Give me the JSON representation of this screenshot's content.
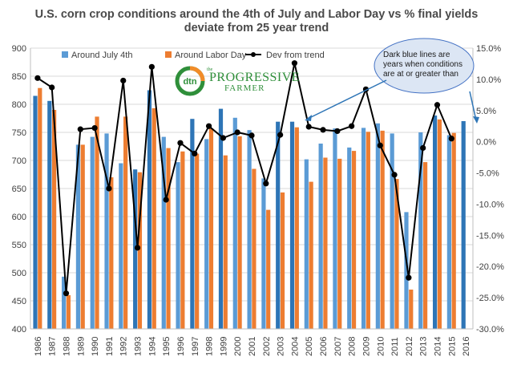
{
  "title_line1": "U.S. corn crop conditions around the 4th of July and Labor Day vs % final yields",
  "title_line2": "deviate from 25 year trend",
  "logo": {
    "mark": "dtn",
    "the": "the",
    "name": "PROGRESSIVE",
    "sub": "FARMER"
  },
  "callout": "Dark blue lines are years when conditions are at or greater than",
  "colors": {
    "july": "#5b9bd5",
    "july_dark": "#2e75b6",
    "labor": "#ed7d31",
    "dev_line": "#000000",
    "callout_fill": "#dce6f4",
    "callout_stroke": "#4472c4",
    "logo_green": "#2f8f3a",
    "logo_orange": "#f28c28"
  },
  "chart_data": {
    "type": "bar",
    "categories": [
      "1986",
      "1987",
      "1988",
      "1989",
      "1990",
      "1991",
      "1992",
      "1993",
      "1994",
      "1995",
      "1996",
      "1997",
      "1998",
      "1999",
      "2000",
      "2001",
      "2002",
      "2003",
      "2004",
      "2005",
      "2006",
      "2007",
      "2008",
      "2009",
      "2010",
      "2011",
      "2012",
      "2013",
      "2014",
      "2015",
      "2016"
    ],
    "series": [
      {
        "name": "Around July 4th",
        "axis": "left",
        "values": [
          815,
          806,
          493,
          728,
          742,
          748,
          695,
          684,
          825,
          742,
          697,
          774,
          738,
          792,
          776,
          754,
          668,
          769,
          769,
          702,
          730,
          757,
          723,
          758,
          766,
          748,
          608,
          750,
          780,
          745,
          770
        ],
        "dark": [
          true,
          true,
          false,
          false,
          false,
          false,
          false,
          true,
          true,
          false,
          false,
          true,
          false,
          true,
          false,
          false,
          false,
          true,
          true,
          false,
          false,
          false,
          false,
          false,
          false,
          false,
          false,
          false,
          true,
          false,
          true
        ]
      },
      {
        "name": "Around Labor Day",
        "axis": "left",
        "values": [
          829,
          790,
          460,
          728,
          778,
          670,
          778,
          679,
          793,
          722,
          716,
          712,
          757,
          709,
          743,
          685,
          612,
          643,
          759,
          662,
          705,
          703,
          717,
          751,
          753,
          667,
          470,
          697,
          773,
          749,
          null
        ]
      },
      {
        "name": "Dev from trend",
        "type": "line",
        "axis": "right",
        "values": [
          10.2,
          8.7,
          -24.3,
          2.0,
          2.2,
          -7.5,
          9.8,
          -17.0,
          12.0,
          -9.3,
          -0.2,
          -1.9,
          2.5,
          0.6,
          1.5,
          1.0,
          -6.7,
          1.1,
          12.6,
          2.4,
          1.9,
          1.7,
          2.5,
          8.4,
          -0.6,
          -5.3,
          -21.8,
          -1.0,
          5.9,
          0.5,
          null
        ]
      }
    ],
    "ylim_left": [
      400,
      900
    ],
    "yticks_left": [
      "400",
      "450",
      "500",
      "550",
      "600",
      "650",
      "700",
      "750",
      "800",
      "850",
      "900"
    ],
    "ylim_right": [
      -30,
      15
    ],
    "yticks_right": [
      "-30.0%",
      "-25.0%",
      "-20.0%",
      "-15.0%",
      "-10.0%",
      "-5.0%",
      "0.0%",
      "5.0%",
      "10.0%",
      "15.0%"
    ],
    "grid": true,
    "legend": "top"
  }
}
